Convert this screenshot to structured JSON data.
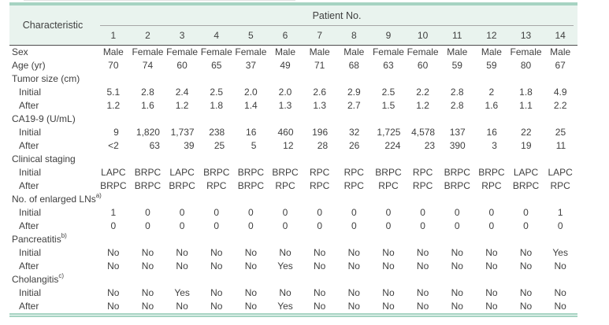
{
  "table": {
    "header": {
      "characteristic": "Characteristic",
      "patient_group": "Patient No.",
      "patient_numbers": [
        "1",
        "2",
        "3",
        "4",
        "5",
        "6",
        "7",
        "8",
        "9",
        "10",
        "11",
        "12",
        "13",
        "14"
      ]
    },
    "rows": [
      {
        "label": "Sex",
        "values": [
          "Male",
          "Female",
          "Female",
          "Female",
          "Female",
          "Male",
          "Male",
          "Male",
          "Female",
          "Female",
          "Male",
          "Male",
          "Female",
          "Male"
        ]
      },
      {
        "label": "Age (yr)",
        "values": [
          "70",
          "74",
          "60",
          "65",
          "37",
          "49",
          "71",
          "68",
          "63",
          "60",
          "59",
          "59",
          "80",
          "67"
        ]
      },
      {
        "label": "Tumor size (cm)",
        "section": true
      },
      {
        "label": "Initial",
        "indent": true,
        "values": [
          "5.1",
          "2.8",
          "2.4",
          "2.5",
          "2.0",
          "2.0",
          "2.6",
          "2.9",
          "2.5",
          "2.2",
          "2.8",
          "2",
          "1.8",
          "4.9"
        ]
      },
      {
        "label": "After",
        "indent": true,
        "values": [
          "1.2",
          "1.6",
          "1.2",
          "1.8",
          "1.4",
          "1.3",
          "1.3",
          "2.7",
          "1.5",
          "1.2",
          "2.8",
          "1.6",
          "1.1",
          "2.2"
        ]
      },
      {
        "label": "CA19-9 (U/mL)",
        "section": true
      },
      {
        "label": "Initial",
        "indent": true,
        "align": "right",
        "values": [
          "9",
          "1,820",
          "1,737",
          "238",
          "16",
          "460",
          "196",
          "32",
          "1,725",
          "4,578",
          "137",
          "16",
          "22",
          "25"
        ]
      },
      {
        "label": "After",
        "indent": true,
        "align": "right",
        "values": [
          "<2",
          "63",
          "39",
          "25",
          "5",
          "12",
          "28",
          "26",
          "224",
          "23",
          "390",
          "3",
          "19",
          "11"
        ]
      },
      {
        "label": "Clinical staging",
        "section": true
      },
      {
        "label": "Initial",
        "indent": true,
        "values": [
          "LAPC",
          "BRPC",
          "LAPC",
          "BRPC",
          "BRPC",
          "BRPC",
          "RPC",
          "RPC",
          "BRPC",
          "RPC",
          "BRPC",
          "BRPC",
          "LAPC",
          "LAPC"
        ]
      },
      {
        "label": "After",
        "indent": true,
        "values": [
          "BRPC",
          "BRPC",
          "BRPC",
          "RPC",
          "BRPC",
          "RPC",
          "RPC",
          "RPC",
          "RPC",
          "RPC",
          "BRPC",
          "RPC",
          "BRPC",
          "RPC"
        ]
      },
      {
        "label": "No. of enlarged LNs",
        "sup": "a)",
        "section": true
      },
      {
        "label": "Initial",
        "indent": true,
        "values": [
          "1",
          "0",
          "0",
          "0",
          "0",
          "0",
          "0",
          "0",
          "0",
          "0",
          "0",
          "0",
          "0",
          "1"
        ]
      },
      {
        "label": "After",
        "indent": true,
        "values": [
          "0",
          "0",
          "0",
          "0",
          "0",
          "0",
          "0",
          "0",
          "0",
          "0",
          "0",
          "0",
          "0",
          "0"
        ]
      },
      {
        "label": "Pancreatitis",
        "sup": "b)",
        "section": true
      },
      {
        "label": "Initial",
        "indent": true,
        "values": [
          "No",
          "No",
          "No",
          "No",
          "No",
          "No",
          "No",
          "No",
          "No",
          "No",
          "No",
          "No",
          "No",
          "Yes"
        ]
      },
      {
        "label": "After",
        "indent": true,
        "values": [
          "No",
          "No",
          "No",
          "No",
          "No",
          "Yes",
          "No",
          "No",
          "No",
          "No",
          "No",
          "No",
          "No",
          "No"
        ]
      },
      {
        "label": "Cholangitis",
        "sup": "c)",
        "section": true
      },
      {
        "label": "Initial",
        "indent": true,
        "values": [
          "No",
          "No",
          "Yes",
          "No",
          "No",
          "No",
          "No",
          "No",
          "No",
          "No",
          "No",
          "No",
          "No",
          "No"
        ]
      },
      {
        "label": "After",
        "indent": true,
        "values": [
          "No",
          "No",
          "No",
          "No",
          "No",
          "Yes",
          "No",
          "No",
          "No",
          "No",
          "No",
          "No",
          "No",
          "No"
        ]
      }
    ]
  },
  "colors": {
    "accent_teal": "#a6d3c2",
    "header_bg": "#e9f3ee",
    "header_rule_dark": "#4d4d4d",
    "subheader_rule": "#a6a6a6",
    "text": "#3f3f3f"
  }
}
